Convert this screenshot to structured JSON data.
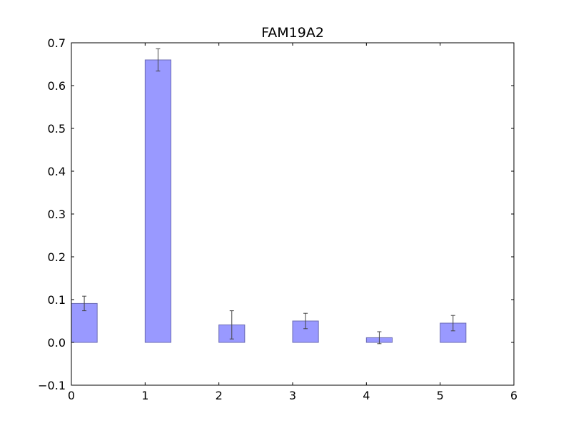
{
  "chart_data": {
    "type": "bar",
    "title": "FAM19A2",
    "xlabel": "",
    "ylabel": "",
    "x": [
      0,
      1,
      2,
      3,
      4,
      5
    ],
    "values": [
      0.091,
      0.66,
      0.041,
      0.05,
      0.011,
      0.045
    ],
    "errors": [
      0.017,
      0.026,
      0.033,
      0.018,
      0.014,
      0.018
    ],
    "bar_width": 0.35,
    "xlim": [
      0,
      6
    ],
    "ylim": [
      -0.1,
      0.7
    ],
    "xticks": [
      0,
      1,
      2,
      3,
      4,
      5,
      6
    ],
    "yticks": [
      -0.1,
      0.0,
      0.1,
      0.2,
      0.3,
      0.4,
      0.5,
      0.6,
      0.7
    ],
    "xtick_labels": [
      "0",
      "1",
      "2",
      "3",
      "4",
      "5",
      "6"
    ],
    "ytick_labels": [
      "−0.1",
      "0.0",
      "0.1",
      "0.2",
      "0.3",
      "0.4",
      "0.5",
      "0.6",
      "0.7"
    ],
    "grid": false,
    "legend": "none",
    "colors": {
      "bar_fill": "#9999ff",
      "bar_edge": "#6b6bb3",
      "error_bar": "#444444",
      "axis": "#000000"
    }
  }
}
